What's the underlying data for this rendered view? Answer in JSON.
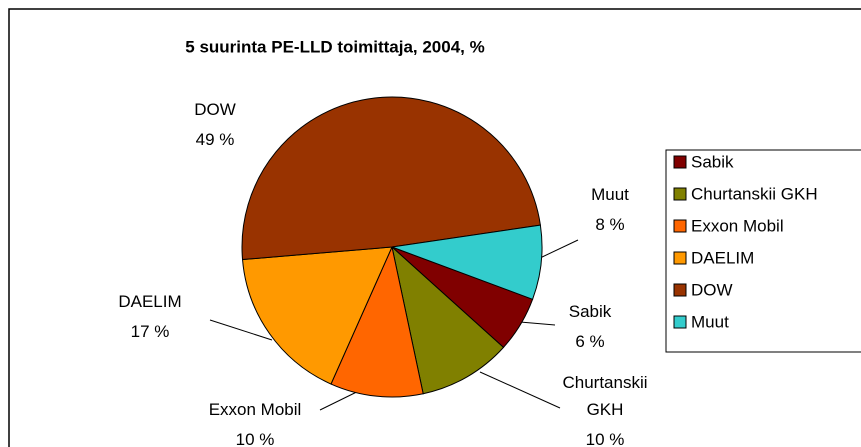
{
  "chart_data": {
    "type": "pie",
    "title": "5 suurinta PE-LLD  toimittaja, 2004, %",
    "categories": [
      "Sabik",
      "Churtanskii GKH",
      "Exxon Mobil",
      "DAELIM",
      "DOW",
      "Muut"
    ],
    "values": [
      6,
      10,
      10,
      17,
      49,
      8
    ],
    "value_labels": [
      "6 %",
      "10 %",
      "10 %",
      "17 %",
      "49 %",
      "8 %"
    ],
    "colors": [
      "#800000",
      "#808000",
      "#ff6600",
      "#ff9900",
      "#993300",
      "#33cccc"
    ],
    "legend": "right"
  }
}
